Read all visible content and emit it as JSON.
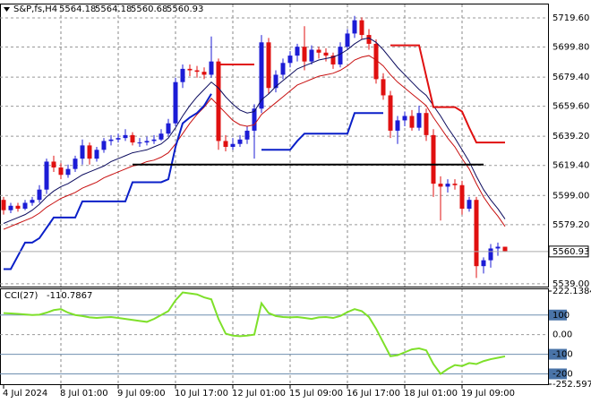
{
  "chart_data": [
    {
      "type": "candlestick",
      "title": "S&P,fs,H4",
      "categories": [
        "4 Jul 2024",
        null,
        null,
        null,
        null,
        null,
        null,
        null,
        "8 Jul 01:00",
        null,
        null,
        null,
        null,
        null,
        null,
        null,
        "9 Jul 09:00",
        null,
        null,
        null,
        null,
        null,
        null,
        null,
        "10 Jul 17:00",
        null,
        null,
        null,
        null,
        null,
        null,
        null,
        "12 Jul 01:00",
        null,
        null,
        null,
        null,
        null,
        null,
        null,
        "15 Jul 09:00",
        null,
        null,
        null,
        null,
        null,
        null,
        null,
        "16 Jul 17:00",
        null,
        null,
        null,
        null,
        null,
        null,
        null,
        "18 Jul 01:00",
        null,
        null,
        null,
        null,
        null,
        null,
        null,
        "19 Jul 09:00",
        null,
        null,
        null,
        null,
        null,
        null
      ],
      "open": [
        5596,
        5589,
        5592,
        5590,
        5594,
        5596,
        5603,
        5622,
        5618,
        5613,
        5617,
        5624,
        5633,
        5624,
        5630,
        5636,
        5637,
        5638,
        5640,
        5635,
        5635,
        5636,
        5637,
        5641,
        5648,
        5676,
        5685,
        5684,
        5683,
        5681,
        5690,
        5636,
        5632,
        5634,
        5637,
        5643,
        5658,
        5703,
        5672,
        5681,
        5689,
        5694,
        5700,
        5690,
        5698,
        5696,
        5694,
        5688,
        5700,
        5709,
        5718,
        5708,
        5702,
        5678,
        5667,
        5643,
        5650,
        5653,
        5645,
        5655,
        5640,
        5607,
        5605,
        5607,
        5606,
        5590,
        5596,
        5551,
        5555,
        5563,
        5564.18
      ],
      "high": [
        5598,
        5594,
        5594,
        5596,
        5598,
        5606,
        5624,
        5626,
        5621,
        5620,
        5626,
        5637,
        5635,
        5632,
        5638,
        5640,
        5641,
        5644,
        5642,
        5638,
        5639,
        5640,
        5644,
        5651,
        5679,
        5688,
        5688,
        5687,
        5686,
        5707,
        5692,
        5640,
        5638,
        5640,
        5646,
        5661,
        5708,
        5706,
        5684,
        5692,
        5697,
        5702,
        5714,
        5701,
        5700,
        5699,
        5696,
        5703,
        5712,
        5721,
        5720,
        5712,
        5705,
        5682,
        5670,
        5653,
        5656,
        5657,
        5660,
        5658,
        5644,
        5612,
        5610,
        5610,
        5609,
        5598,
        5598,
        5557,
        5566,
        5567,
        5564.18
      ],
      "low": [
        5586,
        5587,
        5588,
        5589,
        5592,
        5594,
        5600,
        5615,
        5610,
        5611,
        5615,
        5620,
        5620,
        5622,
        5628,
        5633,
        5635,
        5636,
        5633,
        5632,
        5633,
        5634,
        5636,
        5639,
        5646,
        5672,
        5680,
        5679,
        5678,
        5679,
        5630,
        5629,
        5630,
        5632,
        5634,
        5624,
        5655,
        5668,
        5669,
        5678,
        5686,
        5690,
        5684,
        5688,
        5692,
        5690,
        5685,
        5686,
        5698,
        5706,
        5705,
        5698,
        5675,
        5664,
        5638,
        5634,
        5646,
        5643,
        5643,
        5636,
        5598,
        5582,
        5601,
        5603,
        5586,
        5588,
        5543,
        5546,
        5550,
        5558,
        5560.68
      ],
      "close": [
        5589,
        5592,
        5590,
        5594,
        5596,
        5603,
        5622,
        5618,
        5613,
        5617,
        5624,
        5633,
        5624,
        5630,
        5636,
        5637,
        5638,
        5640,
        5635,
        5635,
        5636,
        5637,
        5641,
        5648,
        5676,
        5685,
        5684,
        5683,
        5681,
        5690,
        5636,
        5632,
        5634,
        5637,
        5643,
        5658,
        5703,
        5672,
        5681,
        5689,
        5694,
        5700,
        5690,
        5698,
        5696,
        5694,
        5688,
        5700,
        5709,
        5718,
        5708,
        5702,
        5678,
        5667,
        5643,
        5650,
        5653,
        5645,
        5655,
        5640,
        5607,
        5605,
        5607,
        5606,
        5590,
        5596,
        5551,
        5555,
        5563,
        5564.18,
        5560.93
      ],
      "up_color": "#1c1cd6",
      "down_color": "#e01010",
      "series": [
        {
          "color": "#0b0b5e",
          "values": [
            5580,
            5582,
            5584,
            5586,
            5589,
            5593,
            5598,
            5602,
            5605,
            5607,
            5610,
            5613,
            5615,
            5617,
            5619,
            5622,
            5624,
            5626,
            5628,
            5629,
            5630,
            5632,
            5634,
            5638,
            5645,
            5653,
            5660,
            5666,
            5671,
            5676,
            5672,
            5666,
            5661,
            5657,
            5655,
            5656,
            5664,
            5668,
            5673,
            5677,
            5681,
            5685,
            5687,
            5689,
            5691,
            5692,
            5693,
            5695,
            5698,
            5702,
            5705,
            5706,
            5703,
            5698,
            5692,
            5686,
            5681,
            5676,
            5671,
            5667,
            5660,
            5653,
            5645,
            5638,
            5630,
            5622,
            5612,
            5603,
            5596,
            5590,
            5583
          ]
        },
        {
          "color": "#c81010",
          "values": [
            5576,
            5578,
            5580,
            5582,
            5584,
            5587,
            5591,
            5594,
            5597,
            5599,
            5601,
            5604,
            5606,
            5608,
            5611,
            5613,
            5615,
            5617,
            5619,
            5620,
            5622,
            5623,
            5625,
            5628,
            5634,
            5641,
            5648,
            5654,
            5659,
            5665,
            5660,
            5655,
            5650,
            5647,
            5646,
            5647,
            5654,
            5658,
            5662,
            5666,
            5670,
            5674,
            5676,
            5678,
            5680,
            5681,
            5682,
            5684,
            5687,
            5691,
            5693,
            5694,
            5691,
            5687,
            5681,
            5676,
            5672,
            5668,
            5664,
            5660,
            5652,
            5645,
            5638,
            5632,
            5624,
            5617,
            5607,
            5598,
            5591,
            5585,
            5578
          ]
        },
        {
          "color": "#0a1fc8",
          "width": 2,
          "values": [
            5549,
            5549,
            5558,
            5567,
            5567,
            5570,
            5577,
            5584,
            5584,
            5584,
            5584,
            5595,
            5595,
            5595,
            5595,
            5595,
            5595,
            5595,
            5608,
            5608,
            5608,
            5608,
            5608,
            5610,
            5632,
            5648,
            5652,
            5655,
            5660,
            5668,
            null,
            null,
            null,
            null,
            null,
            null,
            5630,
            5630,
            5630,
            5630,
            5630,
            5636,
            5641,
            5641,
            5641,
            5641,
            5641,
            5641,
            5641,
            5655,
            5655,
            5655,
            5655,
            5655,
            null,
            null,
            null,
            null,
            null,
            null,
            null,
            null,
            null,
            null,
            null,
            null,
            null,
            null,
            null,
            null,
            null
          ]
        },
        {
          "color": "#e01010",
          "width": 2,
          "values": [
            null,
            null,
            null,
            null,
            null,
            null,
            null,
            null,
            null,
            null,
            null,
            null,
            null,
            null,
            null,
            null,
            null,
            null,
            null,
            null,
            null,
            null,
            null,
            null,
            null,
            null,
            null,
            null,
            null,
            null,
            5688,
            5688,
            5688,
            5688,
            5688,
            5688,
            null,
            null,
            null,
            null,
            null,
            null,
            null,
            null,
            null,
            null,
            null,
            null,
            null,
            null,
            null,
            null,
            null,
            null,
            5701,
            5701,
            5701,
            5701,
            5701,
            5680,
            5659,
            5659,
            5659,
            5659,
            5656,
            5645,
            5635,
            5635,
            5635,
            5635,
            5635
          ]
        },
        {
          "color": "#000000",
          "width": 2,
          "values": [
            null,
            null,
            null,
            null,
            null,
            null,
            null,
            null,
            null,
            null,
            null,
            null,
            null,
            null,
            null,
            null,
            null,
            null,
            5620,
            5620,
            5620,
            5620,
            5620,
            5620,
            5620,
            5620,
            5620,
            5620,
            5620,
            5620,
            5620,
            5620,
            5620,
            5620,
            5620,
            5620,
            5620,
            5620,
            5620,
            5620,
            5620,
            5620,
            5620,
            5620,
            5620,
            5620,
            5620,
            5620,
            5620,
            5620,
            5620,
            5620,
            5620,
            5620,
            5620,
            5620,
            5620,
            5620,
            5620,
            5620,
            5620,
            5620,
            5620,
            5620,
            5620,
            5620,
            5620,
            5620,
            null,
            null,
            null
          ]
        }
      ],
      "ylim": [
        5537.12,
        5728.72
      ],
      "yticks": [
        {
          "value": 5719.6,
          "label": "5719.60"
        },
        {
          "value": 5699.8,
          "label": "5699.80"
        },
        {
          "value": 5679.4,
          "label": "5679.40"
        },
        {
          "value": 5659.6,
          "label": "5659.60"
        },
        {
          "value": 5639.2,
          "label": "5639.20"
        },
        {
          "value": 5619.4,
          "label": "5619.40"
        },
        {
          "value": 5599,
          "label": "5599.00"
        },
        {
          "value": 5579.2,
          "label": "5579.20"
        },
        {
          "value": 5539,
          "label": "5539.00"
        }
      ],
      "grid": true
    },
    {
      "type": "line",
      "title": "CCI(27)",
      "color": "#7ee02a",
      "values": [
        110,
        108,
        106,
        103,
        100,
        102,
        112,
        125,
        130,
        112,
        100,
        95,
        88,
        85,
        88,
        90,
        85,
        80,
        75,
        70,
        65,
        80,
        100,
        120,
        175,
        215,
        210,
        205,
        190,
        180,
        80,
        5,
        -5,
        -8,
        -5,
        0,
        160,
        110,
        95,
        90,
        88,
        90,
        85,
        80,
        88,
        90,
        85,
        95,
        115,
        130,
        120,
        90,
        30,
        -40,
        -110,
        -105,
        -90,
        -75,
        -70,
        -80,
        -150,
        -200,
        -175,
        -155,
        -160,
        -145,
        -150,
        -135,
        -125,
        -118,
        -110.7867
      ],
      "ylim": [
        -252.5971,
        222.1384
      ],
      "yticks": [
        222.1384,
        100,
        {
          "value": 0,
          "label": "0.00"
        },
        -100,
        -200,
        -252.5971
      ],
      "grid": true
    }
  ]
}
